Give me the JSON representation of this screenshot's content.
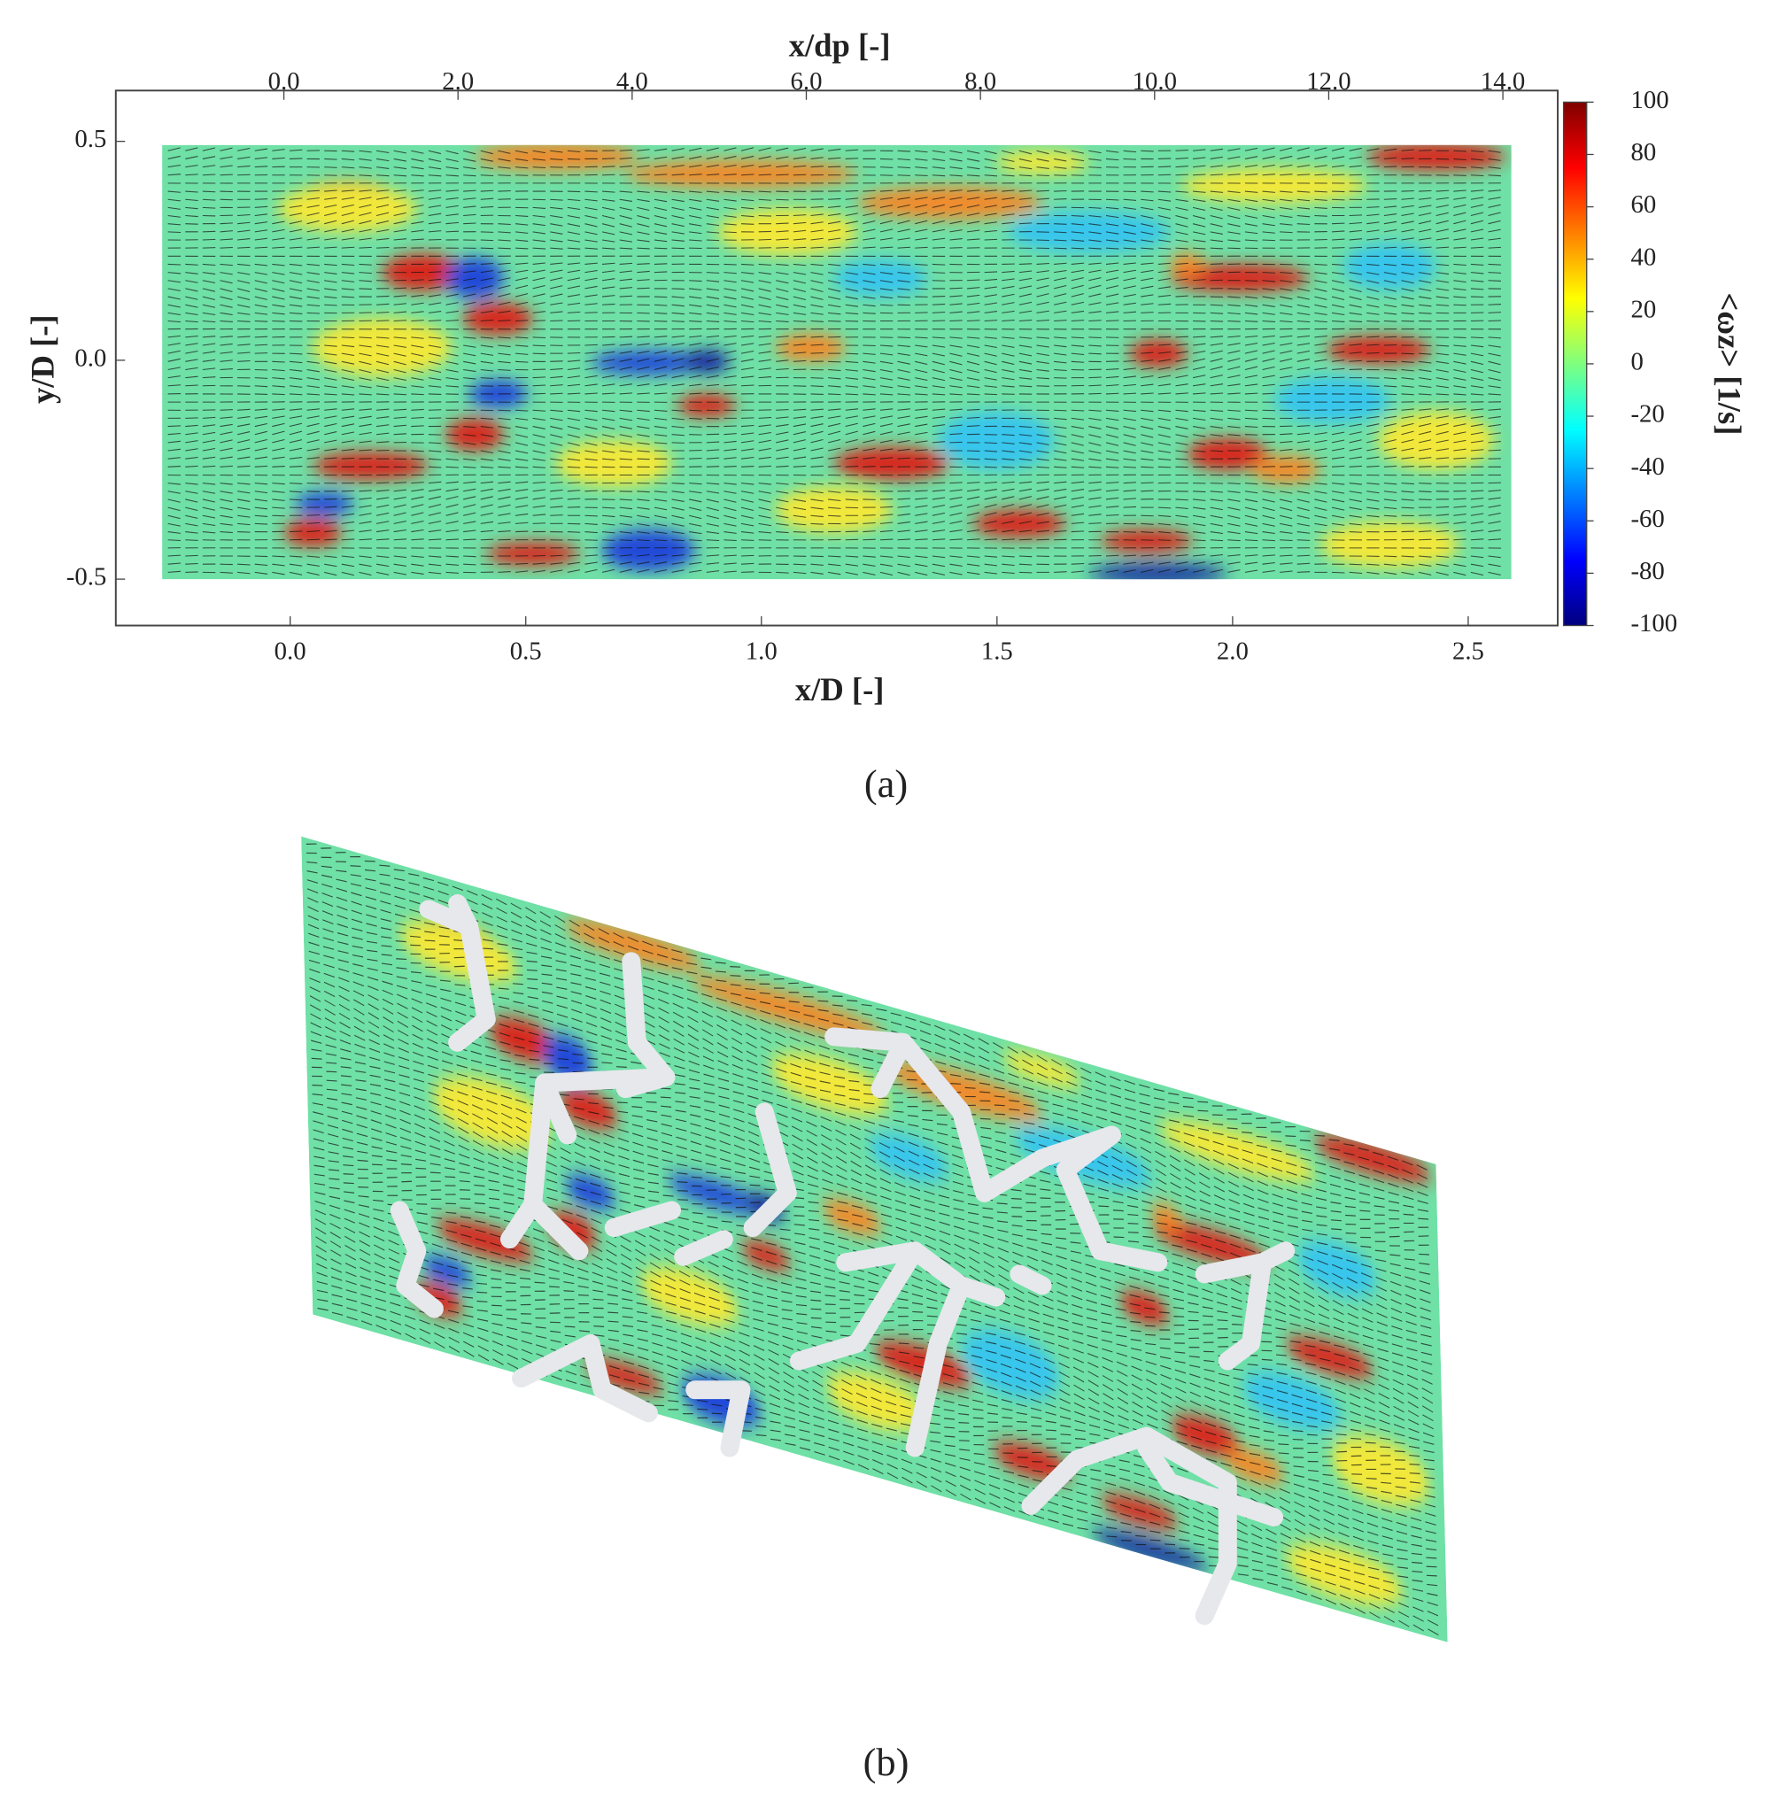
{
  "chart_data": {
    "type": "vector-field",
    "panel_a_label": "(a)",
    "panel_b_label": "(b)",
    "x_label": "x/D [-]",
    "x2_label": "x/dp [-]",
    "y_label": "y/D [-]",
    "colorbar_label": "<ωz> [1/s]",
    "xlim": [
      -0.37,
      2.69
    ],
    "xticks": [
      {
        "value": 0,
        "label": "0.0"
      },
      0.5,
      {
        "value": 1,
        "label": "1.0"
      },
      1.5,
      {
        "value": 2,
        "label": "2.0"
      },
      2.5
    ],
    "x2lim": [
      -1.93,
      14.63
    ],
    "x2ticks": [
      {
        "value": 0,
        "label": "0.0"
      },
      {
        "value": 2,
        "label": "2.0"
      },
      {
        "value": 4,
        "label": "4.0"
      },
      {
        "value": 6,
        "label": "6.0"
      },
      {
        "value": 8,
        "label": "8.0"
      },
      {
        "value": 10,
        "label": "10.0"
      },
      {
        "value": 12,
        "label": "12.0"
      },
      {
        "value": 14,
        "label": "14.0"
      }
    ],
    "ylim": [
      -0.606,
      0.616
    ],
    "yticks": [
      -0.5,
      {
        "value": 0,
        "label": "0.0"
      },
      0.5
    ],
    "clim": [
      -100,
      100
    ],
    "cticks": [
      -100,
      -80,
      -60,
      -40,
      -20,
      0,
      20,
      40,
      60,
      80,
      100
    ],
    "colormap": "jet"
  }
}
